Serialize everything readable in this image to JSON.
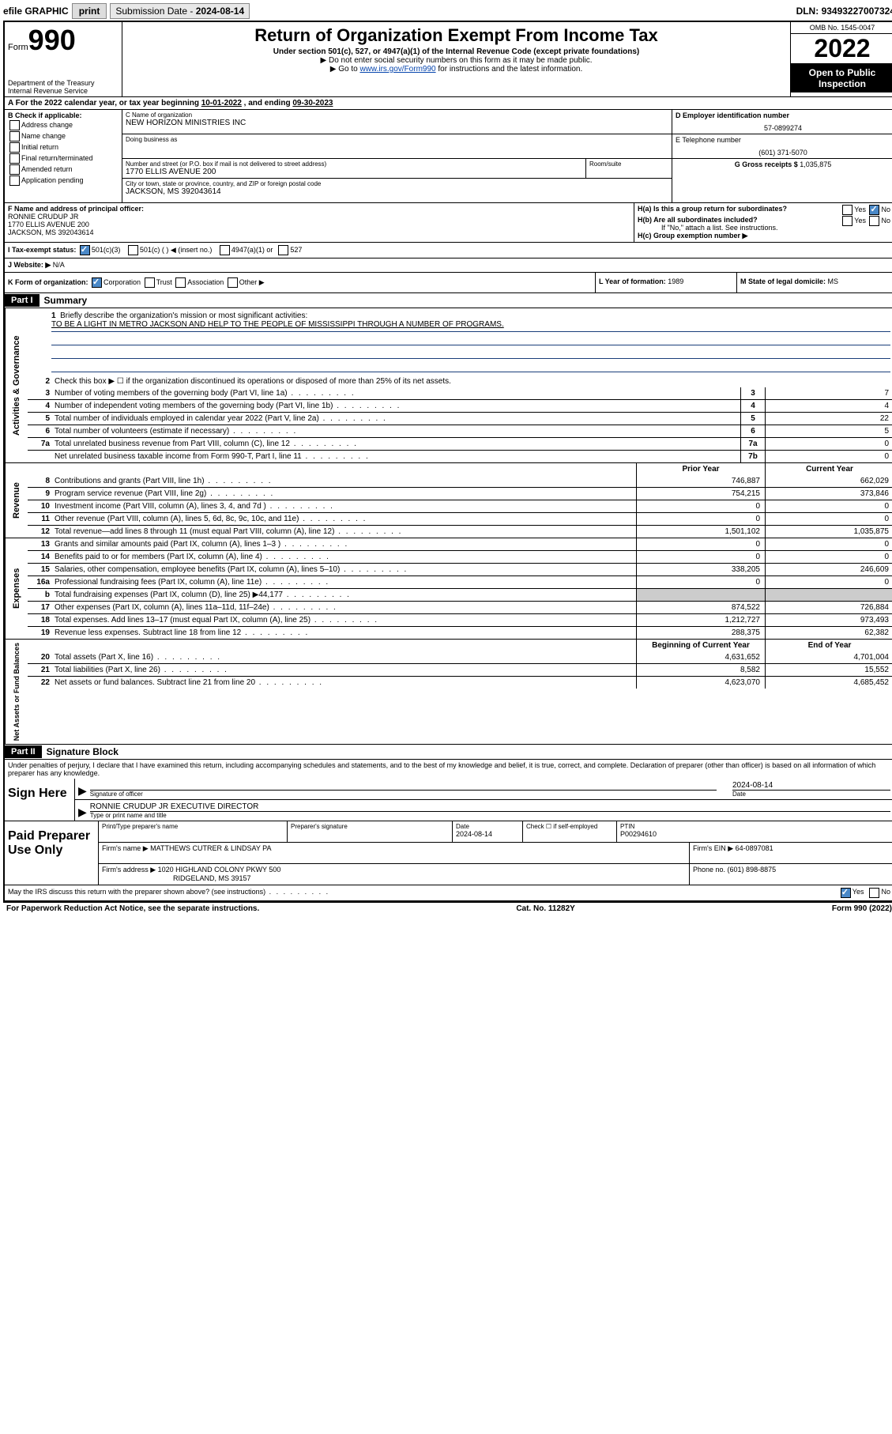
{
  "topbar": {
    "efile": "efile GRAPHIC",
    "print": "print",
    "sub_label": "Submission Date - ",
    "sub_date": "2024-08-14",
    "dln_label": "DLN: ",
    "dln": "93493227007324"
  },
  "header": {
    "form_word": "Form",
    "form_num": "990",
    "dept": "Department of the Treasury",
    "irs": "Internal Revenue Service",
    "title": "Return of Organization Exempt From Income Tax",
    "sub1": "Under section 501(c), 527, or 4947(a)(1) of the Internal Revenue Code (except private foundations)",
    "sub2": "▶ Do not enter social security numbers on this form as it may be made public.",
    "sub3_pre": "▶ Go to ",
    "sub3_link": "www.irs.gov/Form990",
    "sub3_post": " for instructions and the latest information.",
    "omb": "OMB No. 1545-0047",
    "year": "2022",
    "otp": "Open to Public Inspection"
  },
  "rowA": {
    "pre": "A  For the 2022 calendar year, or tax year beginning ",
    "begin": "10-01-2022",
    "mid": " , and ending ",
    "end": "09-30-2023"
  },
  "colB": {
    "hdr": "B Check if applicable:",
    "addr": "Address change",
    "name": "Name change",
    "init": "Initial return",
    "final": "Final return/terminated",
    "amend": "Amended return",
    "app": "Application pending"
  },
  "colC": {
    "name_lab": "C Name of organization",
    "name": "NEW HORIZON MINISTRIES INC",
    "dba_lab": "Doing business as",
    "dba": "",
    "street_lab": "Number and street (or P.O. box if mail is not delivered to street address)",
    "room_lab": "Room/suite",
    "street": "1770 ELLIS AVENUE 200",
    "city_lab": "City or town, state or province, country, and ZIP or foreign postal code",
    "city": "JACKSON, MS  392043614"
  },
  "colDE": {
    "d_lab": "D Employer identification number",
    "ein": "57-0899274",
    "e_lab": "E Telephone number",
    "phone": "(601) 371-5070",
    "g_lab": "G Gross receipts $ ",
    "gross": "1,035,875"
  },
  "rowF": {
    "lab": "F Name and address of principal officer:",
    "name": "RONNIE CRUDUP JR",
    "addr1": "1770 ELLIS AVENUE 200",
    "addr2": "JACKSON, MS  392043614"
  },
  "rowH": {
    "a": "H(a)  Is this a group return for subordinates?",
    "b": "H(b)  Are all subordinates included?",
    "b_note": "If \"No,\" attach a list. See instructions.",
    "c": "H(c)  Group exemption number ▶",
    "yes": "Yes",
    "no": "No"
  },
  "rowI": {
    "lab": "I    Tax-exempt status:",
    "c3": "501(c)(3)",
    "c": "501(c) (  ) ◀ (insert no.)",
    "a1": "4947(a)(1) or",
    "s527": "527"
  },
  "rowJ": {
    "lab": "J   Website: ▶",
    "val": "N/A"
  },
  "rowK": {
    "lab": "K Form of organization:",
    "corp": "Corporation",
    "trust": "Trust",
    "assoc": "Association",
    "other": "Other ▶"
  },
  "rowL": {
    "lab": "L Year of formation: ",
    "val": "1989"
  },
  "rowM": {
    "lab": "M State of legal domicile: ",
    "val": "MS"
  },
  "part1": {
    "hdr": "Part I",
    "title": "Summary",
    "l1": "Briefly describe the organization's mission or most significant activities:",
    "mission": "TO BE A LIGHT IN METRO JACKSON AND HELP TO THE PEOPLE OF MISSISSIPPI THROUGH A NUMBER OF PROGRAMS.",
    "l2": "Check this box ▶ ☐  if the organization discontinued its operations or disposed of more than 25% of its net assets.",
    "vlab_ag": "Activities & Governance",
    "vlab_rev": "Revenue",
    "vlab_exp": "Expenses",
    "vlab_na": "Net Assets or Fund Balances",
    "py": "Prior Year",
    "cy": "Current Year",
    "bcy": "Beginning of Current Year",
    "eoy": "End of Year",
    "lines_top": [
      {
        "n": "3",
        "d": "Number of voting members of the governing body (Part VI, line 1a)",
        "b": "3",
        "v": "7"
      },
      {
        "n": "4",
        "d": "Number of independent voting members of the governing body (Part VI, line 1b)",
        "b": "4",
        "v": "4"
      },
      {
        "n": "5",
        "d": "Total number of individuals employed in calendar year 2022 (Part V, line 2a)",
        "b": "5",
        "v": "22"
      },
      {
        "n": "6",
        "d": "Total number of volunteers (estimate if necessary)",
        "b": "6",
        "v": "5"
      },
      {
        "n": "7a",
        "d": "Total unrelated business revenue from Part VIII, column (C), line 12",
        "b": "7a",
        "v": "0"
      },
      {
        "n": "",
        "d": "Net unrelated business taxable income from Form 990-T, Part I, line 11",
        "b": "7b",
        "v": "0"
      }
    ],
    "lines_rev": [
      {
        "n": "8",
        "d": "Contributions and grants (Part VIII, line 1h)",
        "py": "746,887",
        "cy": "662,029"
      },
      {
        "n": "9",
        "d": "Program service revenue (Part VIII, line 2g)",
        "py": "754,215",
        "cy": "373,846"
      },
      {
        "n": "10",
        "d": "Investment income (Part VIII, column (A), lines 3, 4, and 7d )",
        "py": "0",
        "cy": "0"
      },
      {
        "n": "11",
        "d": "Other revenue (Part VIII, column (A), lines 5, 6d, 8c, 9c, 10c, and 11e)",
        "py": "0",
        "cy": "0"
      },
      {
        "n": "12",
        "d": "Total revenue—add lines 8 through 11 (must equal Part VIII, column (A), line 12)",
        "py": "1,501,102",
        "cy": "1,035,875"
      }
    ],
    "lines_exp": [
      {
        "n": "13",
        "d": "Grants and similar amounts paid (Part IX, column (A), lines 1–3 )",
        "py": "0",
        "cy": "0"
      },
      {
        "n": "14",
        "d": "Benefits paid to or for members (Part IX, column (A), line 4)",
        "py": "0",
        "cy": "0"
      },
      {
        "n": "15",
        "d": "Salaries, other compensation, employee benefits (Part IX, column (A), lines 5–10)",
        "py": "338,205",
        "cy": "246,609"
      },
      {
        "n": "16a",
        "d": "Professional fundraising fees (Part IX, column (A), line 11e)",
        "py": "0",
        "cy": "0"
      },
      {
        "n": "b",
        "d": "Total fundraising expenses (Part IX, column (D), line 25) ▶44,177",
        "py": "",
        "cy": ""
      },
      {
        "n": "17",
        "d": "Other expenses (Part IX, column (A), lines 11a–11d, 11f–24e)",
        "py": "874,522",
        "cy": "726,884"
      },
      {
        "n": "18",
        "d": "Total expenses. Add lines 13–17 (must equal Part IX, column (A), line 25)",
        "py": "1,212,727",
        "cy": "973,493"
      },
      {
        "n": "19",
        "d": "Revenue less expenses. Subtract line 18 from line 12",
        "py": "288,375",
        "cy": "62,382"
      }
    ],
    "lines_na": [
      {
        "n": "20",
        "d": "Total assets (Part X, line 16)",
        "py": "4,631,652",
        "cy": "4,701,004"
      },
      {
        "n": "21",
        "d": "Total liabilities (Part X, line 26)",
        "py": "8,582",
        "cy": "15,552"
      },
      {
        "n": "22",
        "d": "Net assets or fund balances. Subtract line 21 from line 20",
        "py": "4,623,070",
        "cy": "4,685,452"
      }
    ]
  },
  "part2": {
    "hdr": "Part II",
    "title": "Signature Block",
    "decl": "Under penalties of perjury, I declare that I have examined this return, including accompanying schedules and statements, and to the best of my knowledge and belief, it is true, correct, and complete. Declaration of preparer (other than officer) is based on all information of which preparer has any knowledge.",
    "sign_here": "Sign Here",
    "sig_officer": "Signature of officer",
    "sig_date": "2024-08-14",
    "date_lab": "Date",
    "officer_name": "RONNIE CRUDUP JR  EXECUTIVE DIRECTOR",
    "type_name": "Type or print name and title",
    "paid": "Paid Preparer Use Only",
    "p_name_lab": "Print/Type preparer's name",
    "p_sig_lab": "Preparer's signature",
    "p_date_lab": "Date",
    "p_date": "2024-08-14",
    "p_check": "Check ☐ if self-employed",
    "ptin_lab": "PTIN",
    "ptin": "P00294610",
    "firm_name_lab": "Firm's name    ▶ ",
    "firm_name": "MATTHEWS CUTRER & LINDSAY PA",
    "firm_ein_lab": "Firm's EIN ▶ ",
    "firm_ein": "64-0897081",
    "firm_addr_lab": "Firm's address ▶ ",
    "firm_addr1": "1020 HIGHLAND COLONY PKWY 500",
    "firm_addr2": "RIDGELAND, MS  39157",
    "phone_lab": "Phone no. ",
    "phone": "(601) 898-8875",
    "may_irs": "May the IRS discuss this return with the preparer shown above? (see instructions)",
    "yes": "Yes",
    "no": "No"
  },
  "footer": {
    "pra": "For Paperwork Reduction Act Notice, see the separate instructions.",
    "cat": "Cat. No. 11282Y",
    "form": "Form 990 (2022)"
  },
  "colors": {
    "link": "#0645ad",
    "black": "#000000",
    "checkbox_blue": "#4a88c7",
    "rule_blue": "#1a3e7a"
  }
}
